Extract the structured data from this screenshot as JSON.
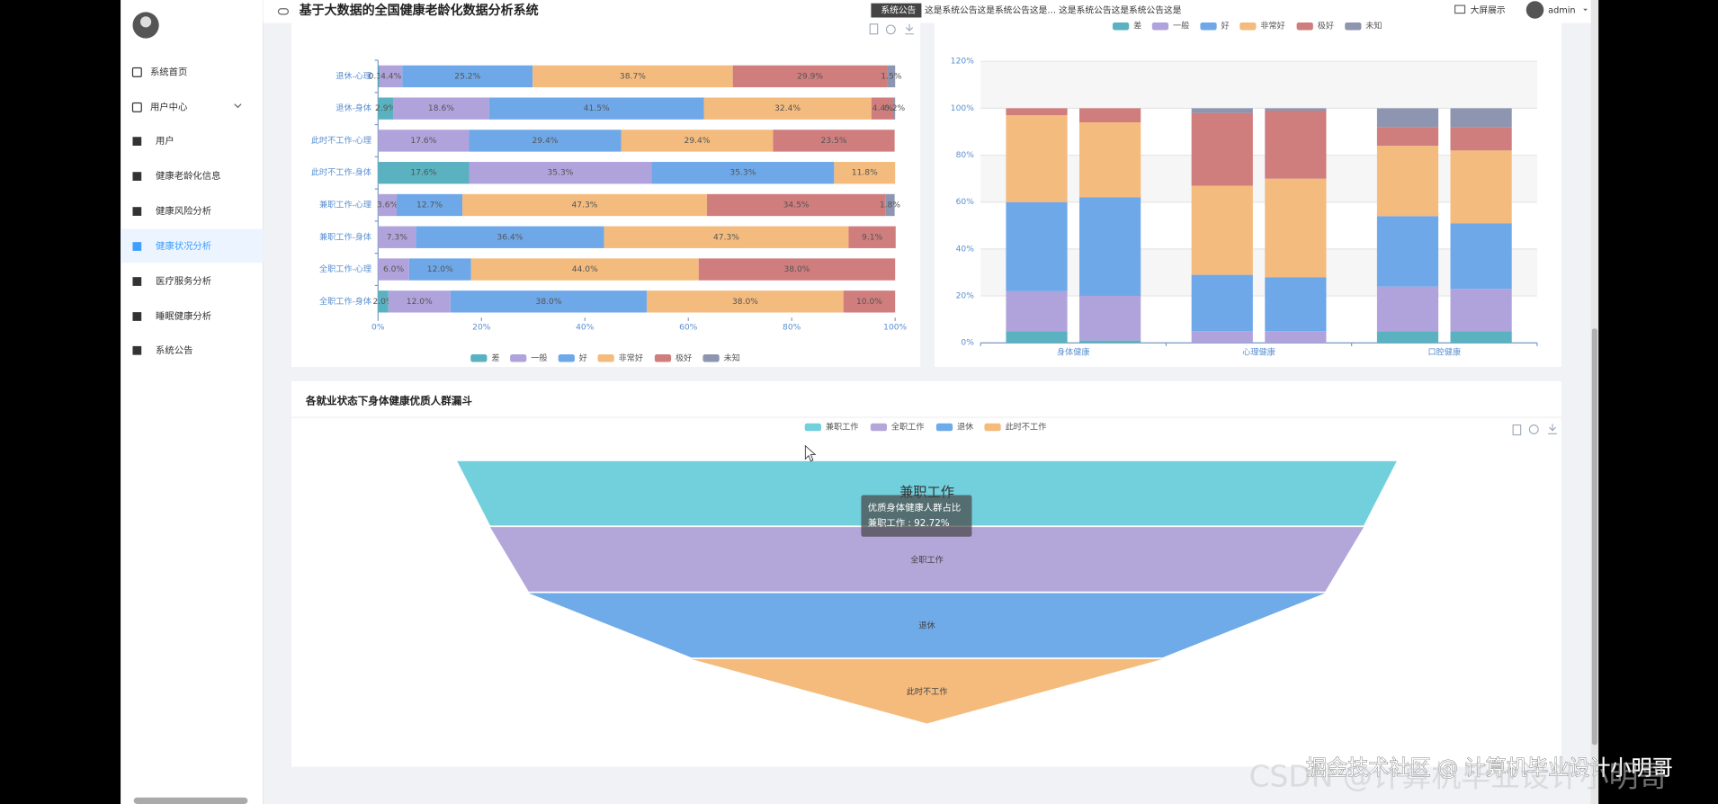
{
  "header": {
    "title": "基于大数据的全国健康老龄化数据分析系统",
    "notice_label": "系统公告",
    "notice": "这是系统公告这是系统公告这是… 这是系统公告这是系统公告这是",
    "screen": "大屏展示",
    "user": "admin"
  },
  "sidebar": {
    "items": [
      "系统首页",
      "用户中心",
      "用户",
      "健康老龄化信息",
      "健康风险分析",
      "健康状况分析",
      "医疗服务分析",
      "睡眠健康分析",
      "系统公告"
    ],
    "active": 5
  },
  "chart_data": [
    {
      "type": "bar",
      "orientation": "horizontal",
      "stacked": true,
      "categories": [
        "退休-心理",
        "退休-身体",
        "此时不工作-心理",
        "此时不工作-身体",
        "兼职工作-心理",
        "兼职工作-身体",
        "全职工作-心理",
        "全职工作-身体"
      ],
      "series": [
        {
          "name": "差",
          "color": "#5ab1c0",
          "values": [
            0.3,
            2.9,
            0,
            17.6,
            0,
            0,
            0,
            2.0
          ],
          "value_labels": [
            "0.3%",
            "2.9%",
            null,
            "17.6%",
            null,
            null,
            null,
            "2.0%"
          ]
        },
        {
          "name": "一般",
          "color": "#b0a3db",
          "values": [
            4.4,
            18.6,
            17.6,
            35.3,
            3.6,
            7.3,
            6.0,
            12.0
          ],
          "value_labels": [
            "4.4%",
            "18.6%",
            "17.6%",
            "35.3%",
            "3.6%",
            "7.3%",
            "6.0%",
            "12.0%"
          ]
        },
        {
          "name": "好",
          "color": "#6fa8e8",
          "values": [
            25.2,
            41.5,
            29.4,
            35.3,
            12.7,
            36.4,
            12.0,
            38.0
          ],
          "value_labels": [
            "25.2%",
            "41.5%",
            "29.4%",
            "35.3%",
            "12.7%",
            "36.4%",
            "12.0%",
            "38.0%"
          ]
        },
        {
          "name": "非常好",
          "color": "#f4bb7e",
          "values": [
            38.7,
            32.4,
            29.4,
            11.8,
            47.3,
            47.3,
            44.0,
            38.0
          ],
          "value_labels": [
            "38.7%",
            "32.4%",
            "29.4%",
            "11.8%",
            "47.3%",
            "47.3%",
            "44.0%",
            "38.0%"
          ]
        },
        {
          "name": "极好",
          "color": "#cf7d7d",
          "values": [
            29.9,
            4.4,
            23.5,
            0,
            34.5,
            9.1,
            38.0,
            10.0
          ],
          "value_labels": [
            "29.9%",
            "4.4%",
            "23.5%",
            null,
            "34.5%",
            "9.1%",
            "38.0%",
            "10.0%"
          ]
        },
        {
          "name": "未知",
          "color": "#8e95b0",
          "values": [
            1.5,
            0.2,
            0,
            0,
            1.8,
            0,
            0,
            0
          ],
          "value_labels": [
            "1.5%",
            "0.2%",
            null,
            null,
            "1.8%",
            null,
            null,
            null
          ]
        }
      ],
      "xlim": [
        0,
        100
      ],
      "xticks": [
        {
          "value": 0,
          "label": "0%"
        },
        {
          "value": 20,
          "label": "20%"
        },
        {
          "value": 40,
          "label": "40%"
        },
        {
          "value": 60,
          "label": "60%"
        },
        {
          "value": 80,
          "label": "80%"
        },
        {
          "value": 100,
          "label": "100%"
        }
      ],
      "legend": "bottom"
    },
    {
      "type": "bar",
      "orientation": "vertical",
      "stacked": true,
      "categories": [
        "身体健康",
        "心理健康",
        "口腔健康"
      ],
      "series": [
        {
          "name": "差",
          "color": "#5ab1c0",
          "values": [
            [
              5,
              1
            ],
            [
              0,
              0
            ],
            [
              5,
              5
            ]
          ]
        },
        {
          "name": "一般",
          "color": "#b0a3db",
          "values": [
            [
              17,
              19
            ],
            [
              5,
              5
            ],
            [
              19,
              18
            ]
          ]
        },
        {
          "name": "好",
          "color": "#6fa8e8",
          "values": [
            [
              38,
              42
            ],
            [
              24,
              23
            ],
            [
              30,
              28
            ]
          ]
        },
        {
          "name": "非常好",
          "color": "#f4bb7e",
          "values": [
            [
              37,
              32
            ],
            [
              38,
              42
            ],
            [
              30,
              31
            ]
          ]
        },
        {
          "name": "极好",
          "color": "#cf7d7d",
          "values": [
            [
              3,
              6
            ],
            [
              31,
              29
            ],
            [
              8,
              10
            ]
          ]
        },
        {
          "name": "未知",
          "color": "#8e95b0",
          "values": [
            [
              0,
              0
            ],
            [
              2,
              1
            ],
            [
              8,
              8
            ]
          ]
        }
      ],
      "ylim": [
        0,
        120
      ],
      "yticks": [
        {
          "value": 0,
          "label": "0%"
        },
        {
          "value": 20,
          "label": "20%"
        },
        {
          "value": 40,
          "label": "40%"
        },
        {
          "value": 60,
          "label": "60%"
        },
        {
          "value": 80,
          "label": "80%"
        },
        {
          "value": 100,
          "label": "100%"
        },
        {
          "value": 120,
          "label": "120%"
        }
      ],
      "grid": true,
      "legend": "top"
    },
    {
      "type": "funnel",
      "title": "各就业状态下身体健康优质人群漏斗",
      "categories": [
        "兼职工作",
        "全职工作",
        "退休",
        "此时不工作"
      ],
      "values": [
        92.72,
        86.2,
        78.6,
        46.5
      ],
      "colors": [
        "#72cfdc",
        "#b3a7da",
        "#6faae9",
        "#f5bb7d"
      ],
      "min": 0,
      "max": 100,
      "tooltip": {
        "title": "优质身体健康人群占比",
        "text": "兼职工作 : 92.72%"
      },
      "legend": "top"
    }
  ],
  "watermarks": [
    "掘金技术社区 @ 计算机毕业设计小明哥",
    "CSDN @计算机毕业设计小明哥"
  ]
}
